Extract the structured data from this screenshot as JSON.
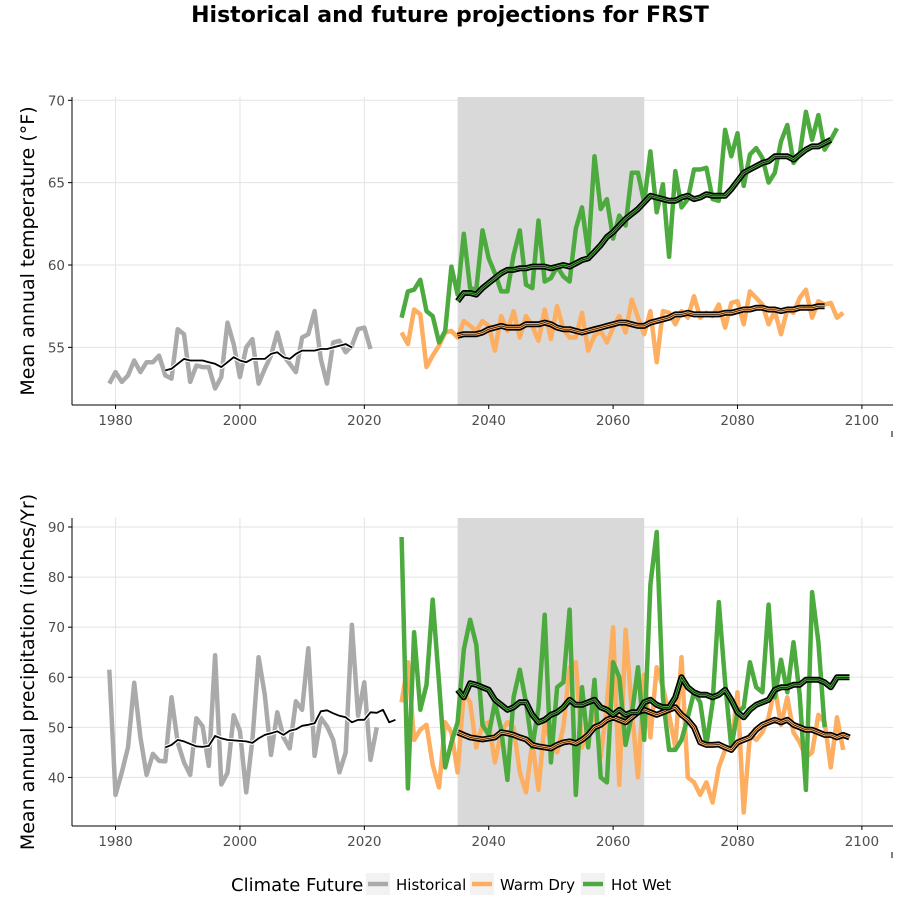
{
  "chart_data": {
    "type": "line",
    "title": "Historical and future projections for FRST",
    "shaded_period": [
      2035,
      2065
    ],
    "legend": {
      "title": "Climate Future",
      "placement": "bottom",
      "items": [
        {
          "label": "Historical",
          "color": "#aaaaaa"
        },
        {
          "label": "Warm Dry",
          "color": "#fdae61"
        },
        {
          "label": "Hot Wet",
          "color": "#4daa3e"
        }
      ]
    },
    "panels": [
      {
        "ylabel": "Mean annual temperature (°F)",
        "xlim": [
          1973,
          2105
        ],
        "ylim": [
          51.5,
          70.2
        ],
        "xticks": [
          1980,
          2000,
          2020,
          2040,
          2060,
          2080,
          2100
        ],
        "yticks": [
          55,
          60,
          65,
          70
        ],
        "series": [
          {
            "name": "Historical",
            "color": "#aaaaaa",
            "start": 1979,
            "values": [
              52.8,
              53.5,
              52.9,
              53.3,
              54.2,
              53.5,
              54.1,
              54.1,
              54.5,
              53.3,
              53.1,
              56.1,
              55.8,
              52.9,
              53.9,
              53.8,
              53.8,
              52.5,
              53.2,
              56.5,
              55.2,
              53.2,
              55.0,
              55.5,
              52.8,
              53.7,
              54.5,
              55.9,
              54.5,
              54.0,
              53.5,
              55.6,
              55.8,
              57.2,
              54.3,
              52.8,
              55.3,
              55.4,
              54.7,
              55.1,
              56.1,
              56.2,
              54.9
            ]
          },
          {
            "name": "Historical 10yr",
            "color": "#000000",
            "smooth": true,
            "start": 1988,
            "values": [
              53.6,
              53.7,
              54.0,
              54.3,
              54.2,
              54.2,
              54.2,
              54.1,
              54.0,
              53.8,
              54.1,
              54.4,
              54.2,
              54.1,
              54.3,
              54.3,
              54.3,
              54.6,
              54.7,
              54.4,
              54.3,
              54.6,
              54.8,
              54.8,
              54.8,
              54.9,
              54.9,
              55.0,
              55.1,
              55.2,
              55.0
            ]
          },
          {
            "name": "Warm Dry",
            "color": "#fdae61",
            "start": 2026,
            "values": [
              55.9,
              55.2,
              57.3,
              57.0,
              53.8,
              54.5,
              55.1,
              55.9,
              56.0,
              55.6,
              56.6,
              56.3,
              56.0,
              56.6,
              56.3,
              54.8,
              56.9,
              56.0,
              57.2,
              55.6,
              56.9,
              56.3,
              55.4,
              57.3,
              55.5,
              57.5,
              56.1,
              55.6,
              55.6,
              57.1,
              54.8,
              55.7,
              56.0,
              55.3,
              56.2,
              56.9,
              55.9,
              57.9,
              56.8,
              55.8,
              57.2,
              54.1,
              57.2,
              57.1,
              56.4,
              57.2,
              56.8,
              58.1,
              56.8,
              57.1,
              56.9,
              57.6,
              56.2,
              57.7,
              57.8,
              56.4,
              58.4,
              58.0,
              57.6,
              56.4,
              57.2,
              55.8,
              57.3,
              57.1,
              58.0,
              58.5,
              56.8,
              57.8,
              57.6,
              57.7,
              56.8,
              57.1
            ]
          },
          {
            "name": "Hot Wet",
            "color": "#4daa3e",
            "start": 2026,
            "values": [
              56.8,
              58.4,
              58.5,
              59.1,
              57.2,
              56.9,
              55.3,
              56.0,
              59.9,
              58.2,
              61.9,
              58.6,
              58.5,
              62.1,
              60.4,
              59.5,
              58.4,
              58.4,
              60.6,
              62.1,
              58.8,
              58.6,
              62.7,
              59.0,
              59.2,
              59.9,
              59.3,
              59.0,
              62.2,
              63.5,
              60.7,
              66.6,
              63.4,
              64.0,
              61.6,
              63.0,
              62.4,
              65.6,
              65.6,
              63.8,
              66.9,
              63.2,
              64.9,
              60.5,
              65.7,
              63.5,
              64.0,
              65.8,
              65.8,
              65.9,
              64.0,
              63.9,
              68.2,
              66.6,
              68.0,
              64.8,
              66.7,
              67.1,
              66.5,
              65.0,
              65.6,
              67.5,
              68.5,
              66.2,
              66.7,
              69.3,
              67.6,
              69.1,
              67.0,
              67.6,
              68.3
            ]
          },
          {
            "name": "Warm Dry 10yr",
            "color": "#000000",
            "outline": "#fdae61",
            "smooth": true,
            "start": 2035,
            "values": [
              55.7,
              55.8,
              55.8,
              55.8,
              55.9,
              56.1,
              56.2,
              56.3,
              56.2,
              56.2,
              56.2,
              56.4,
              56.4,
              56.4,
              56.5,
              56.4,
              56.2,
              56.1,
              56.1,
              56.0,
              55.9,
              56.0,
              56.1,
              56.2,
              56.3,
              56.4,
              56.5,
              56.5,
              56.4,
              56.3,
              56.3,
              56.5,
              56.6,
              56.7,
              56.8,
              57.0,
              57.0,
              57.1,
              57.0,
              57.0,
              57.0,
              57.0,
              57.0,
              57.1,
              57.1,
              57.2,
              57.3,
              57.3,
              57.4,
              57.4,
              57.3,
              57.3,
              57.2,
              57.3,
              57.3,
              57.4,
              57.4,
              57.4,
              57.5,
              57.5
            ]
          },
          {
            "name": "Hot Wet 10yr",
            "color": "#000000",
            "outline": "#4daa3e",
            "smooth": true,
            "start": 2035,
            "values": [
              57.8,
              58.3,
              58.3,
              58.2,
              58.6,
              58.9,
              59.2,
              59.5,
              59.7,
              59.7,
              59.8,
              59.8,
              59.9,
              59.9,
              59.9,
              59.8,
              59.9,
              60.0,
              59.9,
              60.1,
              60.3,
              60.4,
              60.8,
              61.2,
              61.7,
              62.0,
              62.4,
              62.8,
              63.1,
              63.4,
              63.8,
              64.2,
              64.1,
              64.0,
              63.9,
              63.9,
              64.1,
              64.2,
              64.0,
              64.1,
              64.3,
              64.2,
              64.2,
              64.2,
              64.6,
              65.1,
              65.6,
              65.8,
              66.0,
              66.2,
              66.3,
              66.6,
              66.6,
              66.6,
              66.4,
              66.7,
              67.0,
              67.2,
              67.2,
              67.4,
              67.6
            ]
          }
        ]
      },
      {
        "ylabel": "Mean annual precipitation (inches/Yr)",
        "xlim": [
          1973,
          2105
        ],
        "ylim": [
          30.3,
          91.8
        ],
        "xticks": [
          1980,
          2000,
          2020,
          2040,
          2060,
          2080,
          2100
        ],
        "yticks": [
          40,
          50,
          60,
          70,
          80,
          90
        ],
        "series": [
          {
            "name": "Historical",
            "color": "#aaaaaa",
            "start": 1979,
            "values": [
              61.5,
              36.5,
              41.0,
              46.0,
              58.9,
              48.0,
              40.5,
              44.7,
              43.3,
              43.2,
              56.0,
              47.0,
              43.0,
              40.5,
              51.8,
              50.2,
              42.3,
              64.4,
              38.6,
              40.9,
              52.4,
              49.3,
              37.0,
              47.5,
              64.0,
              56.5,
              44.5,
              53.0,
              48.0,
              45.8,
              55.2,
              53.5,
              65.8,
              44.3,
              51.9,
              50.2,
              47.5,
              41.0,
              45.0,
              70.5,
              52.3,
              59.0,
              43.5,
              50.0
            ]
          },
          {
            "name": "Historical 10yr",
            "color": "#000000",
            "smooth": true,
            "start": 1988,
            "values": [
              46.0,
              46.5,
              47.5,
              47.2,
              46.7,
              46.2,
              46.1,
              46.3,
              48.3,
              47.8,
              47.5,
              47.4,
              47.3,
              47.2,
              46.9,
              47.8,
              48.5,
              48.8,
              49.2,
              48.5,
              49.3,
              49.6,
              50.3,
              50.5,
              50.8,
              53.2,
              53.4,
              52.8,
              52.3,
              52.0,
              51.0,
              51.5,
              51.5,
              53.0,
              52.9,
              53.5,
              51.0,
              51.5
            ]
          },
          {
            "name": "Warm Dry",
            "color": "#fdae61",
            "start": 2026,
            "values": [
              55.0,
              63.0,
              47.5,
              49.5,
              50.5,
              42.5,
              38.0,
              51.0,
              49.0,
              41.0,
              57.0,
              55.0,
              46.0,
              50.5,
              51.0,
              43.0,
              49.0,
              51.0,
              50.0,
              41.0,
              37.0,
              47.0,
              37.5,
              51.0,
              47.0,
              45.0,
              50.0,
              62.0,
              63.0,
              46.0,
              50.0,
              53.0,
              44.0,
              54.5,
              70.0,
              38.5,
              69.5,
              53.5,
              40.0,
              60.5,
              48.0,
              62.0,
              58.0,
              52.5,
              46.0,
              64.0,
              40.0,
              39.0,
              36.5,
              39.0,
              35.0,
              42.0,
              45.5,
              46.0,
              57.0,
              33.0,
              48.5,
              47.5,
              49.0,
              52.0,
              58.0,
              50.5,
              56.0,
              49.0,
              47.0,
              44.0,
              45.0,
              52.5,
              51.0,
              42.0,
              52.0,
              45.5
            ]
          },
          {
            "name": "Hot Wet",
            "color": "#4daa3e",
            "start": 2026,
            "values": [
              88.0,
              37.8,
              69.0,
              53.5,
              58.5,
              75.5,
              59.0,
              42.0,
              47.0,
              51.0,
              65.5,
              71.5,
              66.5,
              50.5,
              48.5,
              55.0,
              49.5,
              39.5,
              56.0,
              61.5,
              55.0,
              46.0,
              54.0,
              72.5,
              43.0,
              58.0,
              59.0,
              73.5,
              36.5,
              58.0,
              46.0,
              59.5,
              40.0,
              39.0,
              63.0,
              60.0,
              46.5,
              52.5,
              62.0,
              47.5,
              78.5,
              89.0,
              56.0,
              45.5,
              45.5,
              47.5,
              52.0,
              57.0,
              55.0,
              46.5,
              55.0,
              75.0,
              59.0,
              46.0,
              53.0,
              54.0,
              63.0,
              58.0,
              57.0,
              74.5,
              56.0,
              63.5,
              57.0,
              67.0,
              56.5,
              37.5,
              77.0,
              67.0,
              50.0
            ]
          },
          {
            "name": "Warm Dry 10yr",
            "color": "#000000",
            "outline": "#fdae61",
            "smooth": true,
            "start": 2035,
            "values": [
              49.0,
              48.5,
              48.0,
              47.8,
              47.6,
              47.8,
              48.0,
              49.0,
              48.8,
              48.5,
              48.0,
              47.6,
              46.5,
              46.2,
              46.0,
              45.8,
              46.5,
              47.0,
              47.2,
              46.8,
              47.5,
              48.5,
              50.0,
              50.5,
              51.5,
              52.0,
              51.5,
              51.0,
              52.0,
              53.0,
              53.5,
              53.0,
              52.5,
              53.0,
              53.5,
              54.0,
              52.5,
              51.5,
              50.0,
              47.0,
              46.5,
              46.5,
              46.6,
              46.0,
              45.5,
              47.0,
              47.5,
              48.0,
              49.5,
              50.5,
              51.0,
              51.5,
              51.0,
              51.5,
              50.5,
              50.0,
              49.5,
              49.5,
              49.0,
              48.5,
              48.5,
              48.0,
              48.5,
              48.0
            ]
          },
          {
            "name": "Hot Wet 10yr",
            "color": "#000000",
            "outline": "#4daa3e",
            "smooth": true,
            "start": 2035,
            "values": [
              57.5,
              56.0,
              58.8,
              58.5,
              58.0,
              57.5,
              55.5,
              54.5,
              53.5,
              54.0,
              55.0,
              55.0,
              52.5,
              51.0,
              51.5,
              52.5,
              53.0,
              54.0,
              55.5,
              54.5,
              54.5,
              55.0,
              55.5,
              54.0,
              53.5,
              52.5,
              53.5,
              52.5,
              53.0,
              53.0,
              55.0,
              55.5,
              54.5,
              54.0,
              54.0,
              56.0,
              60.0,
              58.0,
              57.0,
              56.5,
              56.5,
              56.0,
              56.5,
              57.5,
              55.5,
              53.0,
              52.0,
              53.5,
              54.5,
              55.0,
              55.5,
              57.5,
              58.0,
              58.0,
              58.5,
              58.5,
              59.5,
              59.5,
              59.5,
              59.0,
              58.0,
              60.0,
              60.0,
              60.0
            ]
          }
        ]
      }
    ]
  }
}
